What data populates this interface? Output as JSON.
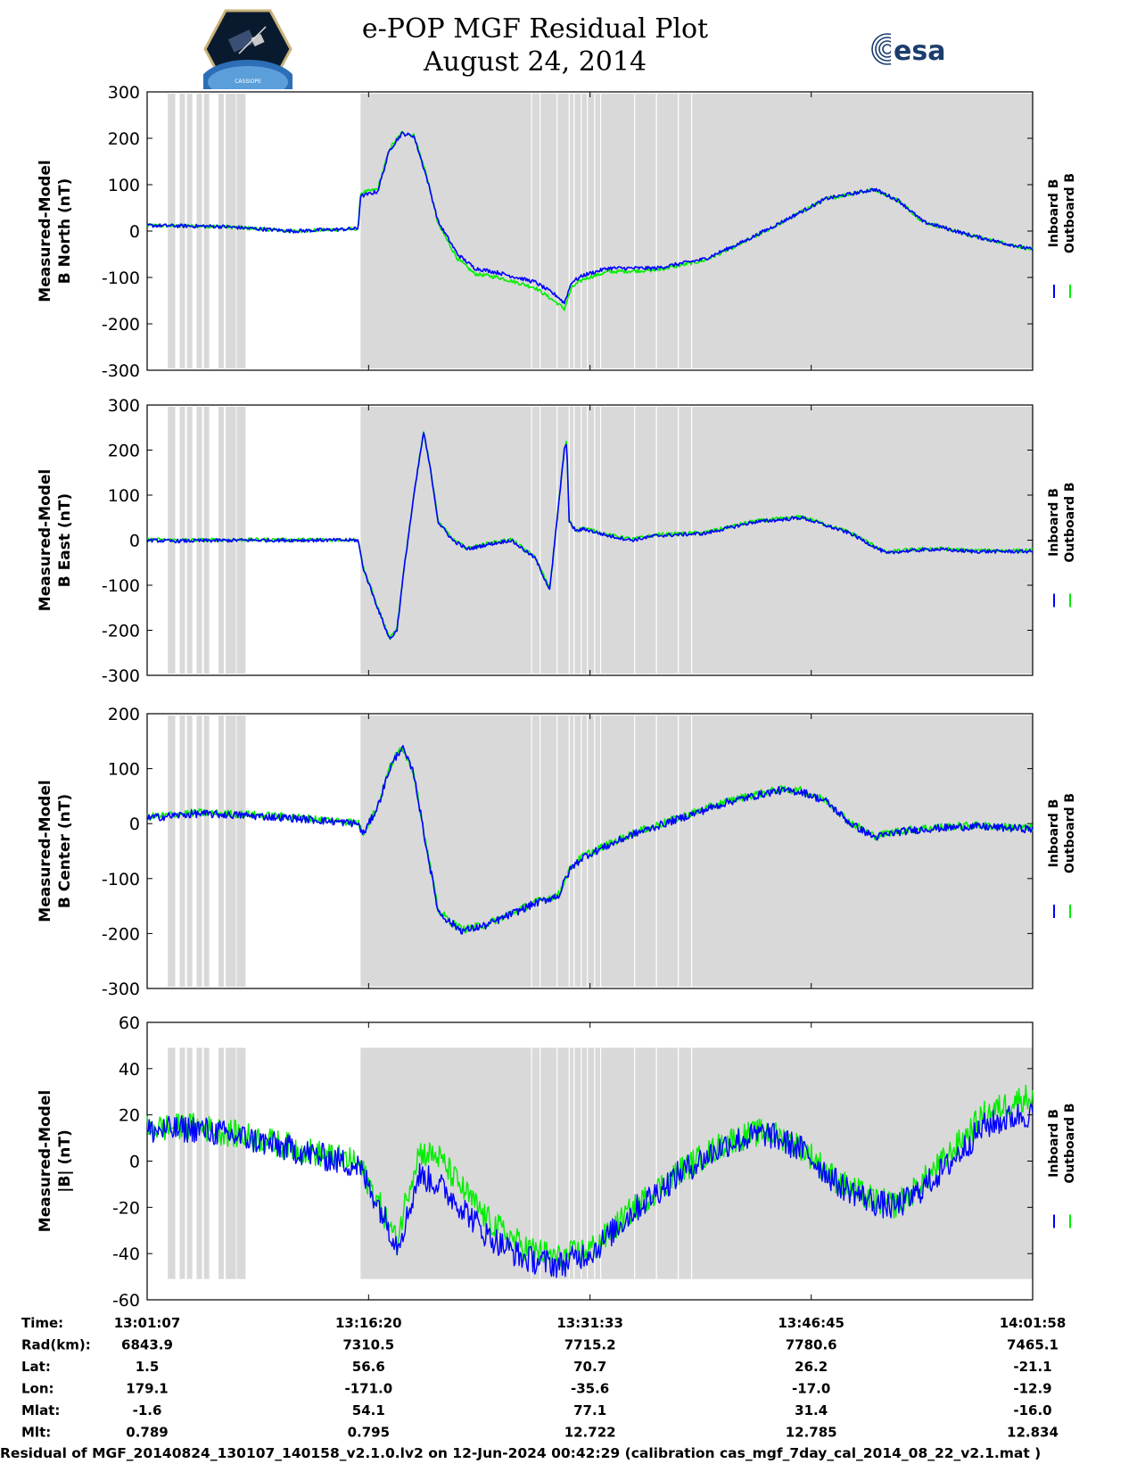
{
  "header": {
    "title_line1": "e-POP MGF Residual Plot",
    "title_line2": "August 24, 2014",
    "esa_logo_text": "esa",
    "cassiope_logo_text": "CASSIOPE"
  },
  "colors": {
    "inboard": "#0000ff",
    "outboard": "#00ee00",
    "shade": "#d9d9d9",
    "gap": "#ffffff"
  },
  "chart_data": {
    "type": "line",
    "x_unit": "seconds since 13:01:07",
    "x_range": [
      0,
      3651
    ],
    "shaded_intervals": [
      [
        85,
        100
      ],
      [
        880,
        3651
      ]
    ],
    "gap_lines_in_shade": [
      100,
      140,
      170,
      210,
      240,
      300,
      330,
      350,
      1585,
      1620,
      1690,
      1740,
      1760,
      1790,
      1815,
      1845,
      1870,
      2010,
      2100,
      2190,
      2245
    ],
    "panels": [
      {
        "id": "b-north",
        "ylabel_line1": "Measured-Model",
        "ylabel_line2": "B North (nT)",
        "ylim": [
          -300,
          300
        ],
        "yticks": [
          300,
          200,
          100,
          0,
          -100,
          -200,
          -300
        ],
        "legend": [
          "Inboard B",
          "Outboard B"
        ],
        "noise": 4,
        "series": [
          {
            "name": "Inboard B",
            "x": [
              0,
              300,
              600,
              870,
              880,
              950,
              1000,
              1050,
              1100,
              1150,
              1200,
              1280,
              1350,
              1450,
              1600,
              1690,
              1720,
              1750,
              1800,
              1900,
              2100,
              2300,
              2450,
              2600,
              2800,
              3000,
              3100,
              3200,
              3400,
              3651
            ],
            "y": [
              12,
              10,
              0,
              5,
              75,
              85,
              175,
              210,
              205,
              120,
              20,
              -50,
              -80,
              -90,
              -110,
              -140,
              -155,
              -110,
              -95,
              -80,
              -80,
              -60,
              -25,
              15,
              70,
              90,
              65,
              20,
              -10,
              -40
            ]
          },
          {
            "name": "Outboard B",
            "x": [
              0,
              300,
              600,
              870,
              880,
              950,
              1000,
              1050,
              1100,
              1150,
              1200,
              1280,
              1350,
              1450,
              1600,
              1690,
              1720,
              1750,
              1800,
              1900,
              2100,
              2300,
              2450,
              2600,
              2800,
              3000,
              3100,
              3200,
              3400,
              3651
            ],
            "y": [
              12,
              10,
              0,
              5,
              82,
              90,
              178,
              212,
              206,
              125,
              15,
              -60,
              -92,
              -100,
              -122,
              -155,
              -168,
              -122,
              -103,
              -88,
              -84,
              -63,
              -27,
              14,
              70,
              90,
              65,
              20,
              -10,
              -40
            ]
          }
        ]
      },
      {
        "id": "b-east",
        "ylabel_line1": "Measured-Model",
        "ylabel_line2": "B East (nT)",
        "ylim": [
          -300,
          300
        ],
        "yticks": [
          300,
          200,
          100,
          0,
          -100,
          -200,
          -300
        ],
        "legend": [
          "Inboard B",
          "Outboard B"
        ],
        "noise": 4,
        "series": [
          {
            "name": "Inboard B",
            "x": [
              0,
              100,
              400,
              600,
              870,
              890,
              950,
              1000,
              1030,
              1060,
              1100,
              1140,
              1170,
              1200,
              1260,
              1320,
              1400,
              1500,
              1600,
              1660,
              1720,
              1730,
              1740,
              1770,
              1800,
              1900,
              2000,
              2100,
              2300,
              2500,
              2700,
              2900,
              3050,
              3100,
              3250,
              3400,
              3651
            ],
            "y": [
              0,
              -2,
              0,
              0,
              0,
              -60,
              -150,
              -220,
              -200,
              -60,
              100,
              240,
              150,
              40,
              0,
              -20,
              -10,
              0,
              -40,
              -110,
              200,
              220,
              40,
              20,
              25,
              10,
              0,
              10,
              15,
              40,
              50,
              15,
              -30,
              -25,
              -20,
              -25,
              -25
            ]
          },
          {
            "name": "Outboard B",
            "x": [
              0,
              100,
              400,
              600,
              870,
              890,
              950,
              1000,
              1030,
              1060,
              1100,
              1140,
              1170,
              1200,
              1260,
              1320,
              1400,
              1500,
              1600,
              1660,
              1720,
              1730,
              1740,
              1770,
              1800,
              1900,
              2000,
              2100,
              2300,
              2500,
              2700,
              2900,
              3050,
              3100,
              3250,
              3400,
              3651
            ],
            "y": [
              2,
              0,
              1,
              1,
              1,
              -58,
              -148,
              -218,
              -198,
              -58,
              102,
              242,
              152,
              42,
              2,
              -18,
              -8,
              2,
              -38,
              -108,
              202,
              222,
              42,
              22,
              27,
              12,
              2,
              12,
              17,
              42,
              52,
              17,
              -28,
              -23,
              -18,
              -23,
              -23
            ]
          }
        ]
      },
      {
        "id": "b-center",
        "ylabel_line1": "Measured-Model",
        "ylabel_line2": "B Center (nT)",
        "ylim": [
          -300,
          200
        ],
        "yticks": [
          200,
          100,
          0,
          -100,
          -200,
          -300
        ],
        "legend": [
          "Inboard B",
          "Outboard B"
        ],
        "noise": 7,
        "series": [
          {
            "name": "Inboard B",
            "x": [
              0,
              200,
              400,
              600,
              870,
              890,
              950,
              1000,
              1050,
              1100,
              1150,
              1200,
              1250,
              1300,
              1400,
              1500,
              1600,
              1700,
              1720,
              1750,
              1800,
              2000,
              2200,
              2400,
              2600,
              2700,
              2800,
              2900,
              3000,
              3100,
              3200,
              3400,
              3651
            ],
            "y": [
              10,
              18,
              15,
              10,
              0,
              -20,
              30,
              100,
              140,
              90,
              -40,
              -160,
              -180,
              -195,
              -185,
              -165,
              -145,
              -130,
              -105,
              -80,
              -60,
              -20,
              10,
              40,
              60,
              58,
              40,
              0,
              -25,
              -15,
              -10,
              -5,
              -10
            ]
          },
          {
            "name": "Outboard B",
            "x": [
              0,
              200,
              400,
              600,
              870,
              890,
              950,
              1000,
              1050,
              1100,
              1150,
              1200,
              1250,
              1300,
              1400,
              1500,
              1600,
              1700,
              1720,
              1750,
              1800,
              2000,
              2200,
              2400,
              2600,
              2700,
              2800,
              2900,
              3000,
              3100,
              3200,
              3400,
              3651
            ],
            "y": [
              12,
              20,
              17,
              12,
              2,
              -18,
              32,
              102,
              142,
              92,
              -38,
              -158,
              -178,
              -193,
              -183,
              -163,
              -143,
              -128,
              -103,
              -78,
              -58,
              -18,
              12,
              42,
              62,
              60,
              42,
              2,
              -23,
              -13,
              -8,
              -3,
              -8
            ]
          }
        ]
      },
      {
        "id": "b-total",
        "ylabel_line1": "Measured-Model",
        "ylabel_line2": "|B| (nT)",
        "ylim": [
          -60,
          60
        ],
        "yticks": [
          60,
          40,
          20,
          0,
          -20,
          -40,
          -60
        ],
        "legend": [
          "Inboard B",
          "Outboard B"
        ],
        "noise": 6,
        "series": [
          {
            "name": "Inboard B",
            "x": [
              0,
              200,
              400,
              600,
              870,
              950,
              1030,
              1070,
              1120,
              1200,
              1300,
              1400,
              1550,
              1700,
              1850,
              2000,
              2200,
              2400,
              2550,
              2700,
              2850,
              3000,
              3080,
              3150,
              3300,
              3450,
              3600,
              3651
            ],
            "y": [
              13,
              14,
              10,
              5,
              -2,
              -18,
              -36,
              -25,
              -6,
              -10,
              -20,
              -32,
              -42,
              -45,
              -38,
              -22,
              -5,
              8,
              12,
              5,
              -10,
              -18,
              -20,
              -16,
              -2,
              15,
              20,
              20
            ]
          },
          {
            "name": "Outboard B",
            "x": [
              0,
              200,
              400,
              600,
              870,
              950,
              1030,
              1070,
              1120,
              1200,
              1300,
              1400,
              1550,
              1700,
              1850,
              2000,
              2200,
              2400,
              2550,
              2700,
              2850,
              3000,
              3080,
              3150,
              3300,
              3450,
              3600,
              3651
            ],
            "y": [
              14,
              15,
              11,
              6,
              -1,
              -17,
              -35,
              -15,
              4,
              2,
              -12,
              -25,
              -37,
              -42,
              -37,
              -21,
              -4,
              9,
              13,
              6,
              -9,
              -17,
              -19,
              -14,
              2,
              20,
              27,
              28
            ]
          }
        ]
      }
    ],
    "x_ticks": [
      {
        "x": 0,
        "time": "13:01:07",
        "rad": "6843.9",
        "lat": "1.5",
        "lon": "179.1",
        "mlat": "-1.6",
        "mlt": "0.789"
      },
      {
        "x": 913,
        "time": "13:16:20",
        "rad": "7310.5",
        "lat": "56.6",
        "lon": "-171.0",
        "mlat": "54.1",
        "mlt": "0.795"
      },
      {
        "x": 1826,
        "time": "13:31:33",
        "rad": "7715.2",
        "lat": "70.7",
        "lon": "-35.6",
        "mlat": "77.1",
        "mlt": "12.722"
      },
      {
        "x": 2738,
        "time": "13:46:45",
        "rad": "7780.6",
        "lat": "26.2",
        "lon": "-17.0",
        "mlat": "31.4",
        "mlt": "12.785"
      },
      {
        "x": 3651,
        "time": "14:01:58",
        "rad": "7465.1",
        "lat": "-21.1",
        "lon": "-12.9",
        "mlat": "-16.0",
        "mlt": "12.834"
      }
    ],
    "ephemeris_labels": [
      "Time:",
      "Rad(km):",
      "Lat:",
      "Lon:",
      "Mlat:",
      "Mlt:"
    ]
  },
  "footer": {
    "text": "Residual of MGF_20140824_130107_140158_v2.1.0.lv2 on 12-Jun-2024 00:42:29 (calibration cas_mgf_7day_cal_2014_08_22_v2.1.mat )"
  }
}
